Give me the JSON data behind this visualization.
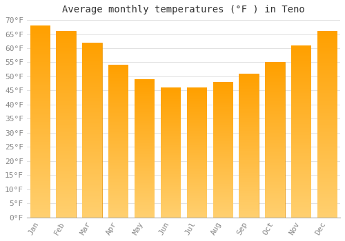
{
  "title": "Average monthly temperatures (°F ) in Teno",
  "months": [
    "Jan",
    "Feb",
    "Mar",
    "Apr",
    "May",
    "Jun",
    "Jul",
    "Aug",
    "Sep",
    "Oct",
    "Nov",
    "Dec"
  ],
  "values": [
    68,
    66,
    62,
    54,
    49,
    46,
    46,
    48,
    51,
    55,
    61,
    66
  ],
  "bar_color_top": "#FFA500",
  "bar_color_bottom": "#FFD060",
  "bar_edge_color": "#E8960A",
  "background_color": "#FFFFFF",
  "grid_color": "#DDDDDD",
  "ylim": [
    0,
    70
  ],
  "ytick_step": 5,
  "title_fontsize": 10,
  "tick_fontsize": 8,
  "tick_label_color": "#888888",
  "title_color": "#333333",
  "bar_width": 0.75
}
